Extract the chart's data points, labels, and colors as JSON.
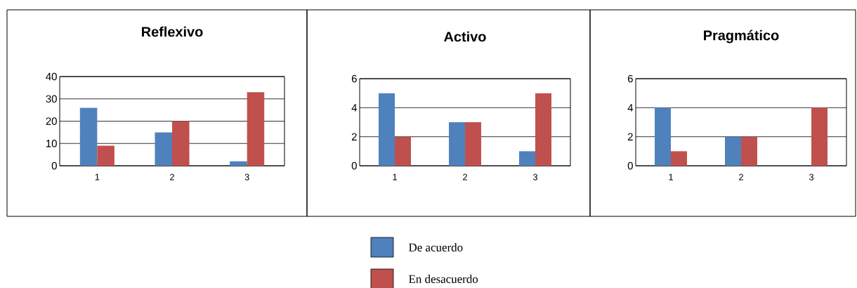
{
  "chart_data": [
    {
      "type": "bar",
      "title": "Reflexivo",
      "categories": [
        "1",
        "2",
        "3"
      ],
      "ylim": [
        0,
        40
      ],
      "yticks": [
        0,
        10,
        20,
        30,
        40
      ],
      "grid": "y",
      "series": [
        {
          "color": "#4f81bd",
          "values": [
            26,
            15,
            2
          ]
        },
        {
          "color": "#c0504d",
          "values": [
            9,
            20,
            33
          ]
        }
      ]
    },
    {
      "type": "bar",
      "title": "Activo",
      "categories": [
        "1",
        "2",
        "3"
      ],
      "ylim": [
        0,
        6
      ],
      "yticks": [
        0,
        2,
        4,
        6
      ],
      "grid": "y",
      "legend": "bottom",
      "series": [
        {
          "name": "De acuerdo",
          "color": "#4f81bd",
          "values": [
            5,
            3,
            1
          ]
        },
        {
          "name": "En desacuerdo",
          "color": "#c0504d",
          "values": [
            2,
            3,
            5
          ]
        }
      ]
    },
    {
      "type": "bar",
      "title": "Pragmático",
      "categories": [
        "1",
        "2",
        "3"
      ],
      "ylim": [
        0,
        6
      ],
      "yticks": [
        0,
        2,
        4,
        6
      ],
      "grid": "y",
      "series": [
        {
          "color": "#4f81bd",
          "values": [
            4,
            2,
            0
          ]
        },
        {
          "color": "#c0504d",
          "values": [
            1,
            2,
            4
          ]
        }
      ]
    }
  ]
}
